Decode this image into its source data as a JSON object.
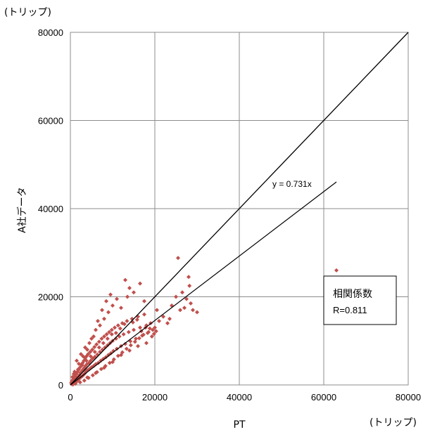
{
  "chart_data": {
    "type": "scatter",
    "xlabel": "PT",
    "ylabel": "A社データ",
    "x_unit": "(トリップ)",
    "y_unit": "(トリップ)",
    "xlim": [
      0,
      80000
    ],
    "ylim": [
      0,
      80000
    ],
    "xticks": [
      "0",
      "20000",
      "40000",
      "60000",
      "80000"
    ],
    "yticks": [
      "0",
      "20000",
      "40000",
      "60000",
      "80000"
    ],
    "grid": true,
    "marker_color": "#c0504d",
    "line_color": "#000000",
    "reference_line": {
      "slope": 1,
      "x": [
        0,
        80000
      ]
    },
    "fit_line": {
      "slope": 0.731,
      "x": [
        0,
        63000
      ],
      "label": "y = 0.731x"
    },
    "stats_box": {
      "title": "相関係数",
      "value": "R=0.811"
    },
    "points": [
      [
        200,
        500
      ],
      [
        300,
        200
      ],
      [
        400,
        900
      ],
      [
        500,
        300
      ],
      [
        600,
        1200
      ],
      [
        700,
        800
      ],
      [
        800,
        400
      ],
      [
        900,
        1500
      ],
      [
        1000,
        700
      ],
      [
        1100,
        2000
      ],
      [
        1200,
        1100
      ],
      [
        1300,
        600
      ],
      [
        1400,
        2500
      ],
      [
        1500,
        1500
      ],
      [
        1600,
        900
      ],
      [
        1700,
        3000
      ],
      [
        1800,
        1800
      ],
      [
        1900,
        1200
      ],
      [
        2000,
        3500
      ],
      [
        2100,
        2200
      ],
      [
        2200,
        1500
      ],
      [
        2300,
        4000
      ],
      [
        2400,
        2700
      ],
      [
        2500,
        1800
      ],
      [
        2600,
        4600
      ],
      [
        2700,
        3100
      ],
      [
        2800,
        2000
      ],
      [
        2900,
        5000
      ],
      [
        3000,
        3500
      ],
      [
        3100,
        2300
      ],
      [
        3200,
        5500
      ],
      [
        3300,
        3900
      ],
      [
        3400,
        2600
      ],
      [
        3500,
        6100
      ],
      [
        3600,
        4300
      ],
      [
        3700,
        3000
      ],
      [
        3800,
        6500
      ],
      [
        3900,
        4700
      ],
      [
        4000,
        3300
      ],
      [
        4200,
        7000
      ],
      [
        4400,
        5000
      ],
      [
        4500,
        3600
      ],
      [
        4700,
        7500
      ],
      [
        4800,
        5500
      ],
      [
        5000,
        4000
      ],
      [
        5200,
        8000
      ],
      [
        5300,
        6000
      ],
      [
        5500,
        4300
      ],
      [
        5700,
        8600
      ],
      [
        5800,
        6400
      ],
      [
        6000,
        4700
      ],
      [
        6200,
        9200
      ],
      [
        6400,
        6900
      ],
      [
        6600,
        5000
      ],
      [
        6800,
        9800
      ],
      [
        7000,
        7500
      ],
      [
        7200,
        5500
      ],
      [
        7400,
        10500
      ],
      [
        7600,
        8000
      ],
      [
        7800,
        5900
      ],
      [
        8000,
        11000
      ],
      [
        8200,
        8500
      ],
      [
        8400,
        6300
      ],
      [
        8600,
        11500
      ],
      [
        8800,
        9000
      ],
      [
        9000,
        6800
      ],
      [
        9200,
        12000
      ],
      [
        9400,
        9500
      ],
      [
        9600,
        7200
      ],
      [
        9800,
        12500
      ],
      [
        10000,
        10000
      ],
      [
        10200,
        7700
      ],
      [
        10500,
        13000
      ],
      [
        10800,
        10500
      ],
      [
        11000,
        8200
      ],
      [
        11300,
        13500
      ],
      [
        11600,
        11000
      ],
      [
        12000,
        8800
      ],
      [
        12300,
        14000
      ],
      [
        12600,
        11500
      ],
      [
        13000,
        9300
      ],
      [
        13400,
        14500
      ],
      [
        13800,
        12000
      ],
      [
        14200,
        9900
      ],
      [
        14600,
        15000
      ],
      [
        15000,
        12500
      ],
      [
        15500,
        10500
      ],
      [
        16000,
        15500
      ],
      [
        16500,
        13000
      ],
      [
        17000,
        11200
      ],
      [
        17500,
        16000
      ],
      [
        18000,
        13500
      ],
      [
        18500,
        12000
      ],
      [
        19000,
        14000
      ],
      [
        19500,
        12500
      ],
      [
        20000,
        13000
      ],
      [
        1500,
        5500
      ],
      [
        2500,
        7000
      ],
      [
        3500,
        8500
      ],
      [
        4500,
        9500
      ],
      [
        5500,
        11000
      ],
      [
        6000,
        12500
      ],
      [
        7000,
        13500
      ],
      [
        8000,
        15000
      ],
      [
        9000,
        16500
      ],
      [
        10000,
        18000
      ],
      [
        11000,
        19500
      ],
      [
        9500,
        20500
      ],
      [
        8500,
        19000
      ],
      [
        13000,
        23800
      ],
      [
        14000,
        22000
      ],
      [
        16500,
        23000
      ],
      [
        17500,
        19000
      ],
      [
        12000,
        17500
      ],
      [
        13500,
        20000
      ],
      [
        15000,
        21000
      ],
      [
        6500,
        14500
      ],
      [
        7500,
        17000
      ],
      [
        5000,
        10500
      ],
      [
        4000,
        8000
      ],
      [
        3000,
        6500
      ],
      [
        2000,
        4800
      ],
      [
        1000,
        3000
      ],
      [
        500,
        1800
      ],
      [
        600,
        100
      ],
      [
        1200,
        300
      ],
      [
        2300,
        600
      ],
      [
        3300,
        1000
      ],
      [
        4300,
        1600
      ],
      [
        5300,
        2200
      ],
      [
        6300,
        2900
      ],
      [
        7300,
        3600
      ],
      [
        8300,
        4300
      ],
      [
        9300,
        5000
      ],
      [
        10300,
        5800
      ],
      [
        11300,
        6600
      ],
      [
        12300,
        7400
      ],
      [
        13300,
        8200
      ],
      [
        14300,
        9000
      ],
      [
        15300,
        9800
      ],
      [
        16300,
        10600
      ],
      [
        17300,
        11400
      ],
      [
        18300,
        11800
      ],
      [
        19300,
        11000
      ],
      [
        20300,
        12200
      ],
      [
        18000,
        9500
      ],
      [
        16000,
        8800
      ],
      [
        14000,
        7800
      ],
      [
        12000,
        6800
      ],
      [
        10000,
        5200
      ],
      [
        8000,
        3900
      ],
      [
        6000,
        2700
      ],
      [
        4000,
        1700
      ],
      [
        20500,
        17000
      ],
      [
        21000,
        14500
      ],
      [
        22000,
        15500
      ],
      [
        23000,
        14000
      ],
      [
        23500,
        15000
      ],
      [
        24000,
        18000
      ],
      [
        25000,
        20000
      ],
      [
        25500,
        28800
      ],
      [
        26000,
        17000
      ],
      [
        26500,
        21000
      ],
      [
        27000,
        17500
      ],
      [
        27500,
        19500
      ],
      [
        28000,
        24500
      ],
      [
        28200,
        22500
      ],
      [
        28500,
        18500
      ],
      [
        29000,
        17000
      ],
      [
        30000,
        16500
      ],
      [
        63000,
        26000
      ],
      [
        10800,
        11800
      ],
      [
        11800,
        12800
      ],
      [
        12800,
        13800
      ],
      [
        14800,
        14200
      ],
      [
        15800,
        14800
      ],
      [
        16800,
        12200
      ],
      [
        17800,
        13000
      ],
      [
        18800,
        12800
      ],
      [
        19800,
        11600
      ],
      [
        7800,
        9500
      ],
      [
        8800,
        10500
      ],
      [
        9800,
        11500
      ],
      [
        6800,
        8500
      ],
      [
        5800,
        7500
      ],
      [
        4800,
        6500
      ],
      [
        3800,
        5500
      ],
      [
        2800,
        4500
      ],
      [
        1800,
        3500
      ],
      [
        800,
        2500
      ]
    ]
  }
}
